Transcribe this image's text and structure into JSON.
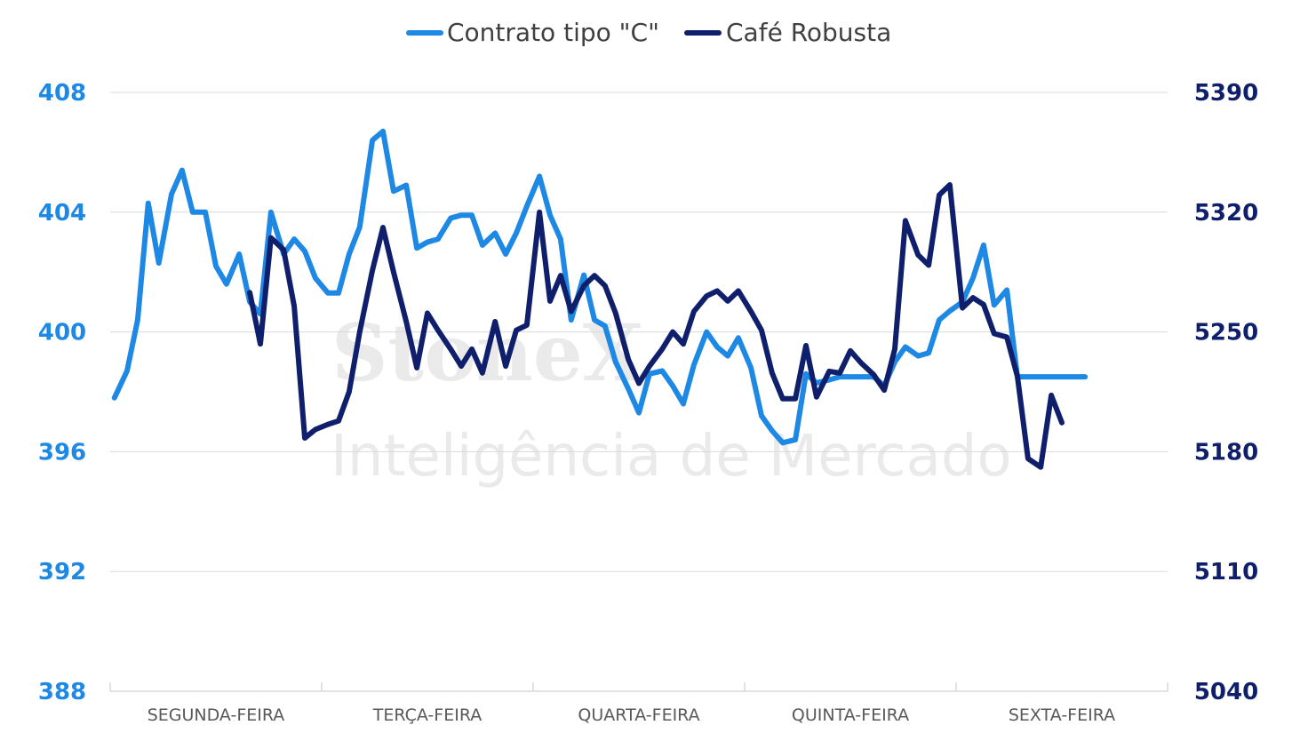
{
  "watermark": {
    "brand": "StoneX",
    "tagline": "Inteligência de Mercado"
  },
  "chart_data": {
    "type": "line",
    "title": "",
    "categories": [
      "SEGUNDA-FEIRA",
      "TERÇA-FEIRA",
      "QUARTA-FEIRA",
      "QUINTA-FEIRA",
      "SEXTA-FEIRA"
    ],
    "legend_position": "top-center",
    "grid": true,
    "y_left": {
      "ylim": [
        388,
        408
      ],
      "ticks": [
        408,
        404,
        400,
        396,
        392,
        388
      ],
      "color": "#1e88e5"
    },
    "y_right": {
      "ylim": [
        5040,
        5390
      ],
      "ticks": [
        5390,
        5320,
        5250,
        5180,
        5110,
        5040
      ],
      "color": "#0f1f6b"
    },
    "series": [
      {
        "name": "Contrato tipo \"C\"",
        "axis": "left",
        "color": "#1e88e5",
        "points": [
          [
            0.02,
            397.8
          ],
          [
            0.08,
            398.7
          ],
          [
            0.13,
            400.4
          ],
          [
            0.18,
            404.3
          ],
          [
            0.23,
            402.3
          ],
          [
            0.29,
            404.6
          ],
          [
            0.34,
            405.4
          ],
          [
            0.39,
            404.0
          ],
          [
            0.45,
            404.0
          ],
          [
            0.5,
            402.2
          ],
          [
            0.55,
            401.6
          ],
          [
            0.61,
            402.6
          ],
          [
            0.66,
            401.0
          ],
          [
            0.71,
            400.6
          ],
          [
            0.76,
            404.0
          ],
          [
            0.82,
            402.6
          ],
          [
            0.87,
            403.1
          ],
          [
            0.92,
            402.7
          ],
          [
            0.97,
            401.8
          ],
          [
            1.03,
            401.3
          ],
          [
            1.08,
            401.3
          ],
          [
            1.13,
            402.6
          ],
          [
            1.18,
            403.5
          ],
          [
            1.24,
            406.4
          ],
          [
            1.29,
            406.7
          ],
          [
            1.34,
            404.7
          ],
          [
            1.4,
            404.9
          ],
          [
            1.45,
            402.8
          ],
          [
            1.5,
            403.0
          ],
          [
            1.55,
            403.1
          ],
          [
            1.61,
            403.8
          ],
          [
            1.66,
            403.9
          ],
          [
            1.71,
            403.9
          ],
          [
            1.76,
            402.9
          ],
          [
            1.82,
            403.3
          ],
          [
            1.87,
            402.6
          ],
          [
            1.92,
            403.3
          ],
          [
            1.97,
            404.2
          ],
          [
            2.03,
            405.2
          ],
          [
            2.08,
            403.9
          ],
          [
            2.13,
            403.1
          ],
          [
            2.18,
            400.4
          ],
          [
            2.24,
            401.9
          ],
          [
            2.29,
            400.4
          ],
          [
            2.34,
            400.2
          ],
          [
            2.39,
            399.0
          ],
          [
            2.45,
            398.1
          ],
          [
            2.5,
            397.3
          ],
          [
            2.55,
            398.6
          ],
          [
            2.61,
            398.7
          ],
          [
            2.66,
            398.2
          ],
          [
            2.71,
            397.6
          ],
          [
            2.76,
            398.9
          ],
          [
            2.82,
            400.0
          ],
          [
            2.87,
            399.5
          ],
          [
            2.92,
            399.2
          ],
          [
            2.97,
            399.8
          ],
          [
            3.03,
            398.8
          ],
          [
            3.08,
            397.2
          ],
          [
            3.13,
            396.7
          ],
          [
            3.18,
            396.3
          ],
          [
            3.24,
            396.4
          ],
          [
            3.29,
            398.6
          ],
          [
            3.34,
            398.3
          ],
          [
            3.4,
            398.4
          ],
          [
            3.45,
            398.5
          ],
          [
            3.5,
            398.5
          ],
          [
            3.55,
            398.5
          ],
          [
            3.61,
            398.5
          ],
          [
            3.66,
            398.2
          ],
          [
            3.71,
            399.0
          ],
          [
            3.76,
            399.5
          ],
          [
            3.82,
            399.2
          ],
          [
            3.87,
            399.3
          ],
          [
            3.92,
            400.4
          ],
          [
            3.97,
            400.7
          ],
          [
            4.03,
            401.0
          ],
          [
            4.08,
            401.8
          ],
          [
            4.13,
            402.9
          ],
          [
            4.18,
            400.9
          ],
          [
            4.24,
            401.4
          ],
          [
            4.29,
            398.5
          ],
          [
            4.34,
            398.5
          ],
          [
            4.4,
            398.5
          ],
          [
            4.45,
            398.5
          ],
          [
            4.5,
            398.5
          ],
          [
            4.55,
            398.5
          ],
          [
            4.61,
            398.5
          ]
        ]
      },
      {
        "name": "Café Robusta",
        "axis": "right",
        "color": "#0f1f6b",
        "points": [
          [
            0.66,
            5273
          ],
          [
            0.71,
            5243
          ],
          [
            0.76,
            5305
          ],
          [
            0.82,
            5298
          ],
          [
            0.87,
            5265
          ],
          [
            0.92,
            5188
          ],
          [
            0.97,
            5193
          ],
          [
            1.03,
            5196
          ],
          [
            1.08,
            5198
          ],
          [
            1.13,
            5215
          ],
          [
            1.18,
            5250
          ],
          [
            1.24,
            5286
          ],
          [
            1.29,
            5311
          ],
          [
            1.34,
            5285
          ],
          [
            1.4,
            5256
          ],
          [
            1.45,
            5229
          ],
          [
            1.5,
            5261
          ],
          [
            1.55,
            5251
          ],
          [
            1.61,
            5240
          ],
          [
            1.66,
            5230
          ],
          [
            1.71,
            5240
          ],
          [
            1.76,
            5226
          ],
          [
            1.82,
            5256
          ],
          [
            1.87,
            5230
          ],
          [
            1.92,
            5251
          ],
          [
            1.97,
            5254
          ],
          [
            2.03,
            5320
          ],
          [
            2.08,
            5268
          ],
          [
            2.13,
            5283
          ],
          [
            2.18,
            5262
          ],
          [
            2.24,
            5277
          ],
          [
            2.29,
            5283
          ],
          [
            2.34,
            5277
          ],
          [
            2.39,
            5261
          ],
          [
            2.45,
            5234
          ],
          [
            2.5,
            5220
          ],
          [
            2.55,
            5230
          ],
          [
            2.61,
            5240
          ],
          [
            2.66,
            5250
          ],
          [
            2.71,
            5243
          ],
          [
            2.76,
            5262
          ],
          [
            2.82,
            5271
          ],
          [
            2.87,
            5274
          ],
          [
            2.92,
            5268
          ],
          [
            2.97,
            5274
          ],
          [
            3.03,
            5262
          ],
          [
            3.08,
            5251
          ],
          [
            3.13,
            5226
          ],
          [
            3.18,
            5211
          ],
          [
            3.24,
            5211
          ],
          [
            3.29,
            5242
          ],
          [
            3.34,
            5212
          ],
          [
            3.4,
            5227
          ],
          [
            3.45,
            5226
          ],
          [
            3.5,
            5239
          ],
          [
            3.55,
            5232
          ],
          [
            3.61,
            5225
          ],
          [
            3.66,
            5216
          ],
          [
            3.71,
            5240
          ],
          [
            3.76,
            5315
          ],
          [
            3.82,
            5295
          ],
          [
            3.87,
            5289
          ],
          [
            3.92,
            5330
          ],
          [
            3.97,
            5336
          ],
          [
            4.03,
            5264
          ],
          [
            4.08,
            5270
          ],
          [
            4.13,
            5266
          ],
          [
            4.18,
            5249
          ],
          [
            4.24,
            5247
          ],
          [
            4.29,
            5224
          ],
          [
            4.34,
            5176
          ],
          [
            4.4,
            5171
          ],
          [
            4.45,
            5213
          ],
          [
            4.5,
            5197
          ]
        ]
      }
    ]
  }
}
